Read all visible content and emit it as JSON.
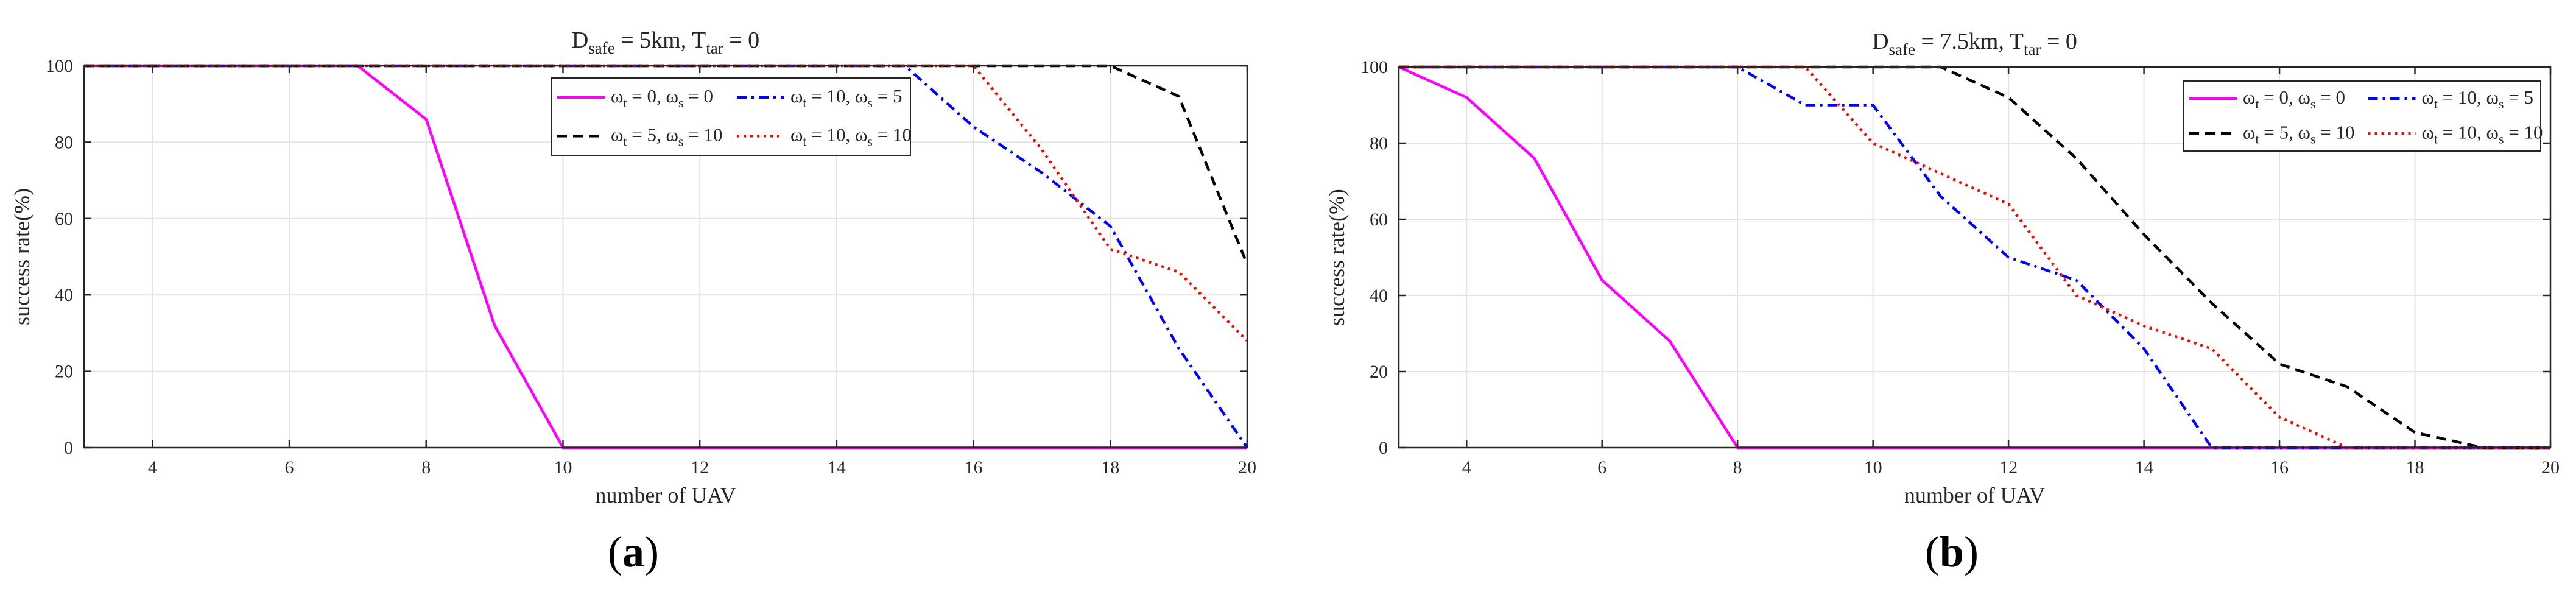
{
  "figure": {
    "panel_labels": [
      {
        "open": "(",
        "letter": "a",
        "close": ")"
      },
      {
        "open": "(",
        "letter": "b",
        "close": ")"
      }
    ]
  },
  "chart_data": [
    {
      "type": "line",
      "title": {
        "main_prefix": "D",
        "main_sub": "safe",
        "main_mid": " = 5km, T",
        "main_sub2": "tar",
        "main_suffix": " = 0"
      },
      "xlabel": "number of UAV",
      "ylabel": "success rate(%)",
      "xlim": [
        3,
        20
      ],
      "ylim": [
        0,
        100
      ],
      "xticks": [
        4,
        6,
        8,
        10,
        12,
        14,
        16,
        18,
        20
      ],
      "yticks": [
        0,
        20,
        40,
        60,
        80,
        100
      ],
      "grid": true,
      "legend_position": "top-right-inset",
      "series": [
        {
          "legend": {
            "a": "ω",
            "as": "t",
            "b": " = 0, ω",
            "bs": "s",
            "c": " = 0"
          },
          "color": "#ff00ff",
          "dash": "solid",
          "x": [
            3,
            7,
            8,
            9,
            10,
            20
          ],
          "values": [
            100,
            100,
            86,
            32,
            0,
            0
          ]
        },
        {
          "legend": {
            "a": "ω",
            "as": "t",
            "b": " = 10, ω",
            "bs": "s",
            "c": " = 5"
          },
          "color": "#0000ff",
          "dash": "dashdot",
          "x": [
            3,
            15,
            16,
            17,
            18,
            19,
            20
          ],
          "values": [
            100,
            100,
            84,
            72,
            58,
            26,
            0
          ]
        },
        {
          "legend": {
            "a": "ω",
            "as": "t",
            "b": " = 5, ω",
            "bs": "s",
            "c": " = 10"
          },
          "color": "#000000",
          "dash": "dashed",
          "x": [
            3,
            18,
            19,
            20
          ],
          "values": [
            100,
            100,
            92,
            48
          ]
        },
        {
          "legend": {
            "a": "ω",
            "as": "t",
            "b": " = 10, ω",
            "bs": "s",
            "c": " = 10"
          },
          "color": "#ff0000",
          "dash": "dotted",
          "x": [
            3,
            16,
            17,
            18,
            19,
            20
          ],
          "values": [
            100,
            100,
            78,
            52,
            46,
            28
          ]
        }
      ]
    },
    {
      "type": "line",
      "title": {
        "main_prefix": "D",
        "main_sub": "safe",
        "main_mid": " = 7.5km, T",
        "main_sub2": "tar",
        "main_suffix": " = 0"
      },
      "xlabel": "number of UAV",
      "ylabel": "success rate(%)",
      "xlim": [
        3,
        20
      ],
      "ylim": [
        0,
        100
      ],
      "xticks": [
        4,
        6,
        8,
        10,
        12,
        14,
        16,
        18,
        20
      ],
      "yticks": [
        0,
        20,
        40,
        60,
        80,
        100
      ],
      "grid": true,
      "legend_position": "top-right",
      "series": [
        {
          "legend": {
            "a": "ω",
            "as": "t",
            "b": " = 0, ω",
            "bs": "s",
            "c": " = 0"
          },
          "color": "#ff00ff",
          "dash": "solid",
          "x": [
            3,
            4,
            5,
            6,
            7,
            8,
            20
          ],
          "values": [
            100,
            92,
            76,
            44,
            28,
            0,
            0
          ]
        },
        {
          "legend": {
            "a": "ω",
            "as": "t",
            "b": " = 10, ω",
            "bs": "s",
            "c": " = 5"
          },
          "color": "#0000ff",
          "dash": "dashdot",
          "x": [
            3,
            8,
            9,
            10,
            11,
            12,
            13,
            14,
            15,
            20
          ],
          "values": [
            100,
            100,
            90,
            90,
            66,
            50,
            44,
            26,
            0,
            0
          ]
        },
        {
          "legend": {
            "a": "ω",
            "as": "t",
            "b": " = 5, ω",
            "bs": "s",
            "c": " = 10"
          },
          "color": "#000000",
          "dash": "dashed",
          "x": [
            3,
            11,
            12,
            13,
            14,
            15,
            16,
            17,
            18,
            19,
            20
          ],
          "values": [
            100,
            100,
            92,
            76,
            56,
            38,
            22,
            16,
            4,
            0,
            0
          ]
        },
        {
          "legend": {
            "a": "ω",
            "as": "t",
            "b": " = 10, ω",
            "bs": "s",
            "c": " = 10"
          },
          "color": "#ff0000",
          "dash": "dotted",
          "x": [
            3,
            9,
            10,
            11,
            12,
            13,
            14,
            15,
            16,
            17,
            20
          ],
          "values": [
            100,
            100,
            80,
            72,
            64,
            40,
            32,
            26,
            8,
            0,
            0
          ]
        }
      ]
    }
  ]
}
